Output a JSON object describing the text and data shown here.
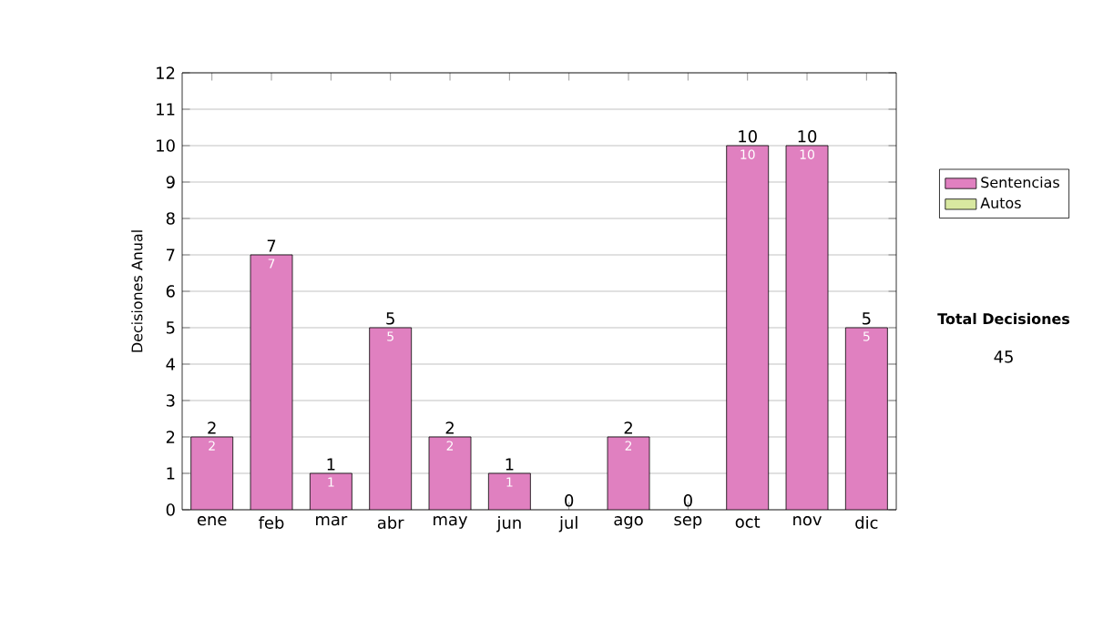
{
  "chart_data": {
    "type": "bar",
    "stacked": true,
    "ylabel": "Decisiones Anual",
    "categories": [
      "ene",
      "feb",
      "mar",
      "abr",
      "may",
      "jun",
      "jul",
      "ago",
      "sep",
      "oct",
      "nov",
      "dic"
    ],
    "series": [
      {
        "name": "Sentencias",
        "color": "#e080c0",
        "values": [
          2,
          7,
          1,
          5,
          2,
          1,
          0,
          2,
          0,
          10,
          10,
          5
        ],
        "value_labels": [
          "2",
          "7",
          "1",
          "5",
          "2",
          "1",
          null,
          "2",
          null,
          "10",
          "10",
          "5"
        ]
      },
      {
        "name": "Autos",
        "color": "#d8e8a0",
        "values": [
          0,
          0,
          0,
          0,
          0,
          0,
          0,
          0,
          0,
          0,
          0,
          0
        ]
      }
    ],
    "totals": [
      "2",
      "7",
      "1",
      "5",
      "2",
      "1",
      "0",
      "2",
      "0",
      "10",
      "10",
      "5"
    ],
    "ylim": [
      0,
      12
    ],
    "yticks": [
      0,
      1,
      2,
      3,
      4,
      5,
      6,
      7,
      8,
      9,
      10,
      11,
      12
    ],
    "grid": "y",
    "legend": "right",
    "annotations": [
      "Total Decisiones",
      "45"
    ]
  }
}
